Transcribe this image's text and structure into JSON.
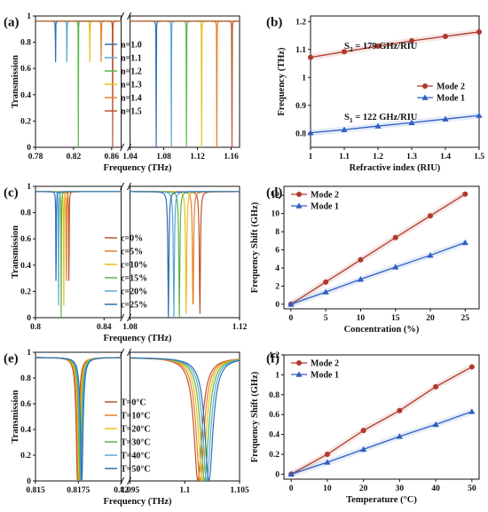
{
  "figure": {
    "panels": [
      "(a)",
      "(b)",
      "(c)",
      "(d)",
      "(e)",
      "(f)"
    ]
  },
  "chart_data": [
    {
      "id": "a",
      "type": "line",
      "panel_label": "(a)",
      "xlabel": "Frequency (THz)",
      "ylabel": "Transmission",
      "broken_axis": true,
      "segments": [
        {
          "xlim": [
            0.78,
            0.87
          ],
          "ticks": [
            0.78,
            0.82,
            0.86
          ]
        },
        {
          "xlim": [
            1.04,
            1.17
          ],
          "ticks": [
            1.04,
            1.08,
            1.12,
            1.16
          ]
        }
      ],
      "ylim": [
        0,
        1
      ],
      "yticks": [
        0,
        0.2,
        0.4,
        0.6,
        0.8,
        1
      ],
      "baseline": 0.96,
      "legend": {
        "placement": "center",
        "entries": [
          "n=1.0",
          "n=1.1",
          "n=1.2",
          "n=1.3",
          "n=1.4",
          "n=1.5"
        ]
      },
      "series": [
        {
          "name": "n=1.0",
          "color": "#2b6fb6",
          "dips": [
            0.801,
            1.071
          ]
        },
        {
          "name": "n=1.1",
          "color": "#5aa7d6",
          "dips": [
            0.813,
            1.089
          ]
        },
        {
          "name": "n=1.2",
          "color": "#57b847",
          "dips": [
            0.825,
            1.107
          ]
        },
        {
          "name": "n=1.3",
          "color": "#e8c11c",
          "dips": [
            0.837,
            1.125
          ]
        },
        {
          "name": "n=1.4",
          "color": "#e6802a",
          "dips": [
            0.849,
            1.143
          ]
        },
        {
          "name": "n=1.5",
          "color": "#b8562a",
          "dips": [
            0.861,
            1.161
          ]
        }
      ]
    },
    {
      "id": "b",
      "type": "line",
      "panel_label": "(b)",
      "xlabel": "Refractive index (RIU)",
      "ylabel": "Frequency (THz)",
      "xlim": [
        1.0,
        1.5
      ],
      "xticks": [
        1,
        1.1,
        1.2,
        1.3,
        1.4,
        1.5
      ],
      "ylim": [
        0.75,
        1.22
      ],
      "yticks": [
        0.8,
        0.9,
        1,
        1.1,
        1.2
      ],
      "legend": {
        "placement": "right",
        "entries": [
          "Mode 2",
          "Mode 1"
        ]
      },
      "annotations": [
        {
          "sym": "S",
          "sub": "2",
          "rest": " = 179 GHz/RIU"
        },
        {
          "sym": "S",
          "sub": "1",
          "rest": " = 122 GHz/RIU"
        }
      ],
      "series": [
        {
          "name": "Mode 2",
          "color": "#b0392b",
          "marker": "circle",
          "x": [
            1,
            1.1,
            1.2,
            1.3,
            1.4,
            1.5
          ],
          "y": [
            1.072,
            1.092,
            1.112,
            1.131,
            1.147,
            1.163
          ]
        },
        {
          "name": "Mode 1",
          "color": "#2f5fc4",
          "marker": "triangle",
          "x": [
            1,
            1.1,
            1.2,
            1.3,
            1.4,
            1.5
          ],
          "y": [
            0.802,
            0.813,
            0.826,
            0.838,
            0.851,
            0.864
          ]
        }
      ]
    },
    {
      "id": "c",
      "type": "line",
      "panel_label": "(c)",
      "xlabel": "Frequency (THz)",
      "ylabel": "Transmission",
      "broken_axis": true,
      "segments": [
        {
          "xlim": [
            0.8,
            0.85
          ],
          "ticks": [
            0.8,
            0.84
          ]
        },
        {
          "xlim": [
            1.08,
            1.12
          ],
          "ticks": [
            1.08,
            1.12
          ]
        }
      ],
      "ylim": [
        0,
        1
      ],
      "yticks": [
        0,
        0.2,
        0.4,
        0.6,
        0.8,
        1
      ],
      "baseline": 0.96,
      "legend": {
        "placement": "center",
        "entries": [
          "c=0%",
          "c=5%",
          "c=10%",
          "c=15%",
          "c=20%",
          "c=25%"
        ]
      },
      "series": [
        {
          "name": "c=0%",
          "color": "#b8562a",
          "dips": [
            0.8195,
            1.1055
          ]
        },
        {
          "name": "c=5%",
          "color": "#e6802a",
          "dips": [
            0.818,
            1.103
          ]
        },
        {
          "name": "c=10%",
          "color": "#e8c11c",
          "dips": [
            0.8165,
            1.1005
          ]
        },
        {
          "name": "c=15%",
          "color": "#57b847",
          "dips": [
            0.815,
            1.098
          ]
        },
        {
          "name": "c=20%",
          "color": "#5aa7d6",
          "dips": [
            0.8135,
            1.096
          ]
        },
        {
          "name": "c=25%",
          "color": "#2b6fb6",
          "dips": [
            0.812,
            1.094
          ]
        }
      ]
    },
    {
      "id": "d",
      "type": "line",
      "panel_label": "(d)",
      "xlabel": "Concentration (%)",
      "ylabel": "Frequency Shift (GHz)",
      "xlim": [
        -1,
        27
      ],
      "xticks": [
        0,
        5,
        10,
        15,
        20,
        25
      ],
      "ylim": [
        -0.5,
        13
      ],
      "yticks": [
        0,
        2,
        4,
        6,
        8,
        10,
        12
      ],
      "legend": {
        "placement": "top-left",
        "entries": [
          "Mode 2",
          "Mode 1"
        ]
      },
      "series": [
        {
          "name": "Mode 2",
          "color": "#b0392b",
          "marker": "circle",
          "x": [
            0,
            5,
            10,
            15,
            20,
            25
          ],
          "y": [
            0,
            2.45,
            4.9,
            7.35,
            9.75,
            12.15
          ]
        },
        {
          "name": "Mode 1",
          "color": "#2f5fc4",
          "marker": "triangle",
          "x": [
            0,
            5,
            10,
            15,
            20,
            25
          ],
          "y": [
            0,
            1.35,
            2.75,
            4.1,
            5.4,
            6.8
          ]
        }
      ]
    },
    {
      "id": "e",
      "type": "line",
      "panel_label": "(e)",
      "xlabel": "Frequency (THz)",
      "ylabel": "Transmission",
      "broken_axis": true,
      "segments": [
        {
          "xlim": [
            0.815,
            0.82
          ],
          "ticks": [
            0.815,
            0.8175,
            0.82
          ],
          "tick_labels": [
            "0.815",
            "0.8175",
            "0.82"
          ]
        },
        {
          "xlim": [
            1.095,
            1.105
          ],
          "ticks": [
            1.095,
            1.1,
            1.105
          ],
          "tick_labels": [
            "1.095",
            "1.1",
            "1.105"
          ]
        }
      ],
      "ylim": [
        0,
        1
      ],
      "yticks": [
        0,
        0.2,
        0.4,
        0.6,
        0.8,
        1
      ],
      "baseline": 0.96,
      "legend": {
        "placement": "center",
        "entries": [
          "T=0°C",
          "T=10°C",
          "T=20°C",
          "T=30°C",
          "T=40°C",
          "T=50°C"
        ]
      },
      "series": [
        {
          "name": "T=0°C",
          "color": "#b8562a",
          "dips": [
            0.81745,
            1.1012
          ]
        },
        {
          "name": "T=10°C",
          "color": "#e6802a",
          "dips": [
            0.8175,
            1.1014
          ]
        },
        {
          "name": "T=20°C",
          "color": "#e8c11c",
          "dips": [
            0.81755,
            1.1016
          ]
        },
        {
          "name": "T=30°C",
          "color": "#57b847",
          "dips": [
            0.8176,
            1.1018
          ]
        },
        {
          "name": "T=40°C",
          "color": "#5aa7d6",
          "dips": [
            0.81765,
            1.102
          ]
        },
        {
          "name": "T=50°C",
          "color": "#2b6fb6",
          "dips": [
            0.8177,
            1.1022
          ]
        }
      ]
    },
    {
      "id": "f",
      "type": "line",
      "panel_label": "(f)",
      "xlabel": "Temperature (°C)",
      "ylabel": "Frequency Shift (GHz)",
      "xlim": [
        -2,
        52
      ],
      "xticks": [
        0,
        10,
        20,
        30,
        40,
        50
      ],
      "ylim": [
        -0.05,
        1.2
      ],
      "yticks": [
        0,
        0.2,
        0.4,
        0.6,
        0.8,
        1,
        1.2
      ],
      "legend": {
        "placement": "top-left",
        "entries": [
          "Mode 2",
          "Mode 1"
        ]
      },
      "series": [
        {
          "name": "Mode 2",
          "color": "#b0392b",
          "marker": "circle",
          "x": [
            0,
            10,
            20,
            30,
            40,
            50
          ],
          "y": [
            0,
            0.2,
            0.44,
            0.64,
            0.88,
            1.08
          ]
        },
        {
          "name": "Mode 1",
          "color": "#2f5fc4",
          "marker": "triangle",
          "x": [
            0,
            10,
            20,
            30,
            40,
            50
          ],
          "y": [
            0,
            0.12,
            0.25,
            0.38,
            0.5,
            0.63
          ]
        }
      ]
    }
  ]
}
